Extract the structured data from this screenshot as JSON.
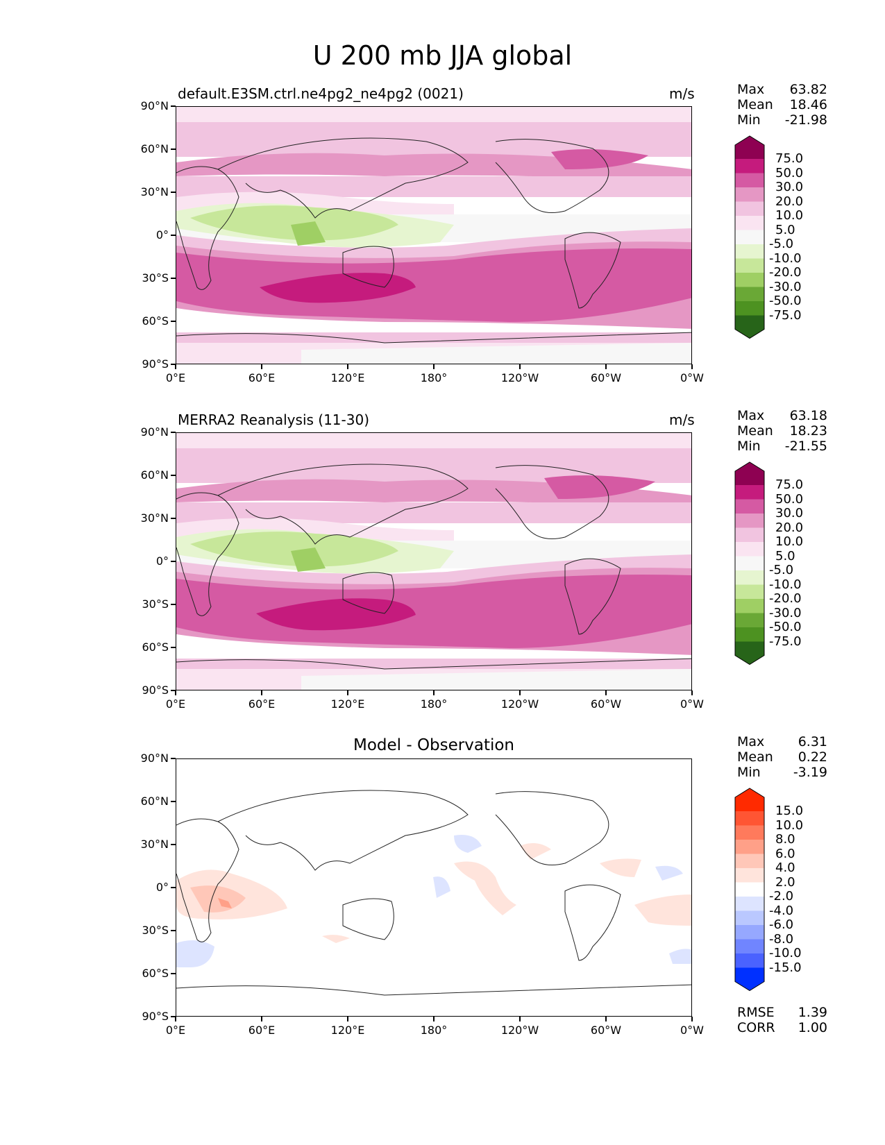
{
  "figure": {
    "title": "U 200 mb JJA global"
  },
  "lat_ticks": [
    "90°N",
    "60°N",
    "30°N",
    "0°",
    "30°S",
    "60°S",
    "90°S"
  ],
  "lon_ticks": [
    "0°E",
    "60°E",
    "120°E",
    "180°",
    "120°W",
    "60°W",
    "0°W"
  ],
  "panels": [
    {
      "title": "default.E3SM.ctrl.ne4pg2_ne4pg2 (0021)",
      "units": "m/s",
      "stats": {
        "max_label": "Max",
        "max": "63.82",
        "mean_label": "Mean",
        "mean": "18.46",
        "min_label": "Min",
        "min": "-21.98"
      },
      "colorbar_labels": [
        "75.0",
        "50.0",
        "30.0",
        "20.0",
        "10.0",
        "5.0",
        "-5.0",
        "-10.0",
        "-20.0",
        "-30.0",
        "-50.0",
        "-75.0"
      ]
    },
    {
      "title": "MERRA2 Reanalysis (11-30)",
      "units": "m/s",
      "stats": {
        "max_label": "Max",
        "max": "63.18",
        "mean_label": "Mean",
        "mean": "18.23",
        "min_label": "Min",
        "min": "-21.55"
      },
      "colorbar_labels": [
        "75.0",
        "50.0",
        "30.0",
        "20.0",
        "10.0",
        "5.0",
        "-5.0",
        "-10.0",
        "-20.0",
        "-30.0",
        "-50.0",
        "-75.0"
      ]
    },
    {
      "title": "Model - Observation",
      "units": "",
      "stats": {
        "max_label": "Max",
        "max": "6.31",
        "mean_label": "Mean",
        "mean": "0.22",
        "min_label": "Min",
        "min": "-3.19"
      },
      "colorbar_labels": [
        "15.0",
        "10.0",
        "8.0",
        "6.0",
        "4.0",
        "2.0",
        "-2.0",
        "-4.0",
        "-6.0",
        "-8.0",
        "-10.0",
        "-15.0"
      ],
      "rmse_label": "RMSE",
      "rmse": "1.39",
      "corr_label": "CORR",
      "corr": "1.00"
    }
  ],
  "colormaps": {
    "wind": [
      "#8e0152",
      "#c51b7d",
      "#d55aa3",
      "#e597c4",
      "#f1c4e0",
      "#fae4f1",
      "#f7f7f7",
      "#e6f5d0",
      "#c7e79a",
      "#9fcf64",
      "#6aa836",
      "#4d9221",
      "#276419"
    ],
    "diff": [
      "#ff2a00",
      "#ff5533",
      "#ff7a5c",
      "#ffa088",
      "#ffc7b8",
      "#ffe4dc",
      "#ffffff",
      "#dde4ff",
      "#bac8ff",
      "#96a8ff",
      "#7085ff",
      "#4a62ff",
      "#0030ff"
    ]
  }
}
